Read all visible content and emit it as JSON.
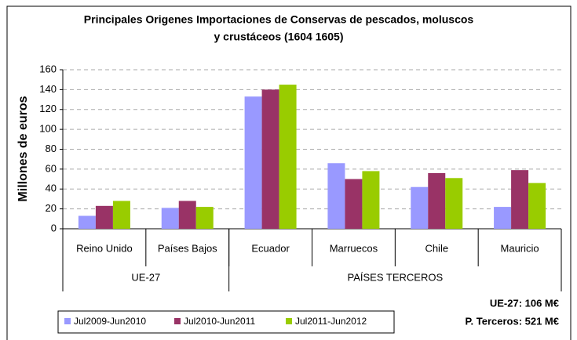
{
  "chart_data": {
    "type": "bar",
    "title": [
      "Principales Origenes Importaciones de Conservas de pescados, moluscos",
      "y crustáceos (1604 1605)"
    ],
    "y_label": "Millones de euros",
    "groups": [
      {
        "name": "UE-27",
        "categories": [
          "Reino Unido",
          "Países Bajos"
        ]
      },
      {
        "name": "PAÍSES TERCEROS",
        "categories": [
          "Ecuador",
          "Marruecos",
          "Chile",
          "Mauricio"
        ]
      }
    ],
    "series": [
      {
        "name": "Jul2009-Jun2010",
        "color": "#9999ff",
        "values": [
          13,
          21,
          133,
          66,
          42,
          22
        ]
      },
      {
        "name": "Jul2010-Jun2011",
        "color": "#993366",
        "values": [
          23,
          28,
          140,
          50,
          56,
          59
        ]
      },
      {
        "name": "Jul2011-Jun2012",
        "color": "#99cc00",
        "values": [
          28,
          22,
          145,
          58,
          51,
          46
        ]
      }
    ],
    "ylim": [
      0,
      160
    ],
    "yticks": [
      0,
      20,
      40,
      60,
      80,
      100,
      120,
      140,
      160
    ],
    "grid": true,
    "annotations": [
      "UE-27: 106 M€",
      "P. Terceros: 521 M€"
    ]
  }
}
